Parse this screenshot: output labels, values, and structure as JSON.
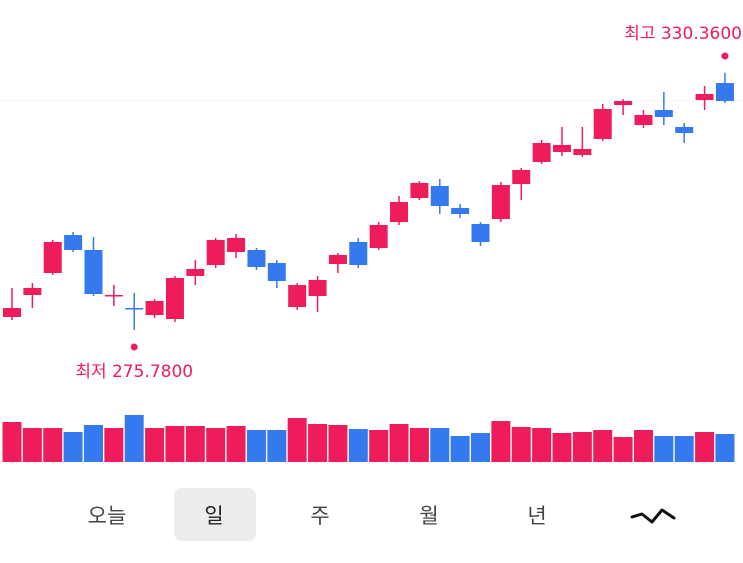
{
  "chart_data": {
    "type": "candlestick",
    "open": [
      278.54,
      283.21,
      287.88,
      295.95,
      292.77,
      283.0,
      280.45,
      278.96,
      278.11,
      287.25,
      289.58,
      292.34,
      292.77,
      290.01,
      280.66,
      283.0,
      289.79,
      294.47,
      293.19,
      298.71,
      303.81,
      306.36,
      301.69,
      298.29,
      299.35,
      306.78,
      311.46,
      313.58,
      312.94,
      316.34,
      323.56,
      319.31,
      322.5,
      318.89,
      324.62,
      328.23
    ],
    "high": [
      284.7,
      285.76,
      294.89,
      296.59,
      295.53,
      285.33,
      283.64,
      282.36,
      287.25,
      290.64,
      295.32,
      296.17,
      293.19,
      290.64,
      285.76,
      287.25,
      292.13,
      295.32,
      298.71,
      304.24,
      307.42,
      307.85,
      302.54,
      298.71,
      307.21,
      310.18,
      316.13,
      318.89,
      318.89,
      323.77,
      324.84,
      322.5,
      326.32,
      319.74,
      327.6,
      330.36
    ],
    "low": [
      277.9,
      280.45,
      287.46,
      292.34,
      283.0,
      280.87,
      275.78,
      278.33,
      277.48,
      285.33,
      288.94,
      291.07,
      288.52,
      284.7,
      280.03,
      279.6,
      287.88,
      288.94,
      292.77,
      298.08,
      303.39,
      300.41,
      299.56,
      293.62,
      298.71,
      303.39,
      311.03,
      312.73,
      312.52,
      315.92,
      321.44,
      318.68,
      319.31,
      315.49,
      322.5,
      323.99
    ],
    "close": [
      280.45,
      284.7,
      294.47,
      292.77,
      283.42,
      283.21,
      280.24,
      281.94,
      286.82,
      288.73,
      294.89,
      295.32,
      289.16,
      286.18,
      285.33,
      286.4,
      291.71,
      289.58,
      298.08,
      302.96,
      307.0,
      302.11,
      300.41,
      294.47,
      306.57,
      309.76,
      315.49,
      315.07,
      314.22,
      322.71,
      324.41,
      321.44,
      321.01,
      317.61,
      325.9,
      324.41
    ],
    "volume": [
      40,
      34,
      34,
      30,
      37,
      34,
      47,
      34,
      36,
      36,
      34,
      36,
      32,
      32,
      44,
      38,
      37,
      33,
      32,
      38,
      34,
      34,
      26,
      29,
      41,
      35,
      34,
      29,
      30,
      32,
      25,
      32,
      26,
      26,
      30,
      28
    ],
    "up_color": "#ef1c5c",
    "down_color": "#3579ee",
    "ylim": [
      270,
      340
    ],
    "vlim": [
      0,
      50
    ],
    "high_label": "최고 330.3600",
    "low_label": "최저 275.7800"
  },
  "tabs": [
    "오늘",
    "일",
    "주",
    "월",
    "년"
  ],
  "selected_tab": 1
}
